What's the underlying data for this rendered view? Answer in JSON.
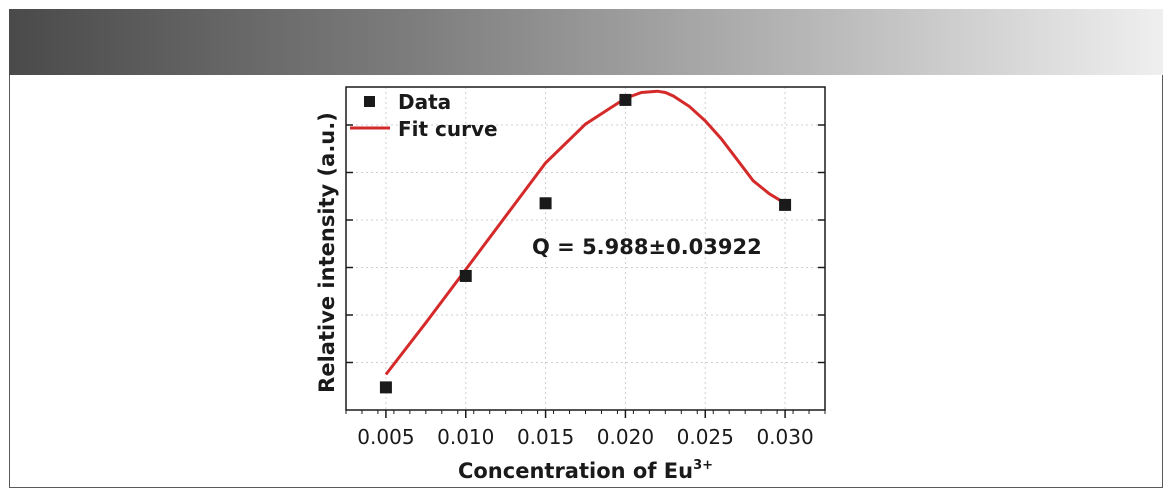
{
  "chart_data": {
    "type": "scatter",
    "xlabel": "Concentration of Eu",
    "xlabel_superscript": "3+",
    "ylabel": "Relative intensity (a.u.)",
    "x_ticks": [
      "0.005",
      "0.010",
      "0.015",
      "0.020",
      "0.025",
      "0.030"
    ],
    "xlim": [
      0.0025,
      0.0325
    ],
    "ylim": [
      0,
      1
    ],
    "y_ticks_labeled": false,
    "grid": true,
    "legend_position": "top-left",
    "series": [
      {
        "name": "Data",
        "kind": "scatter",
        "marker": "square",
        "color": "#1a1a1a",
        "x": [
          0.005,
          0.01,
          0.015,
          0.02,
          0.03
        ],
        "y": [
          0.07,
          0.415,
          0.64,
          0.96,
          0.635
        ]
      },
      {
        "name": "Fit curve",
        "kind": "line",
        "color": "#d42a2a",
        "x": [
          0.005,
          0.0075,
          0.01,
          0.0125,
          0.015,
          0.0175,
          0.02,
          0.021,
          0.022,
          0.0225,
          0.023,
          0.024,
          0.025,
          0.026,
          0.027,
          0.028,
          0.029,
          0.03
        ],
        "y": [
          0.11,
          0.27,
          0.435,
          0.6,
          0.765,
          0.885,
          0.965,
          0.983,
          0.987,
          0.983,
          0.972,
          0.94,
          0.895,
          0.84,
          0.775,
          0.71,
          0.67,
          0.64
        ]
      }
    ],
    "annotation": "Q = 5.988±0.03922"
  }
}
